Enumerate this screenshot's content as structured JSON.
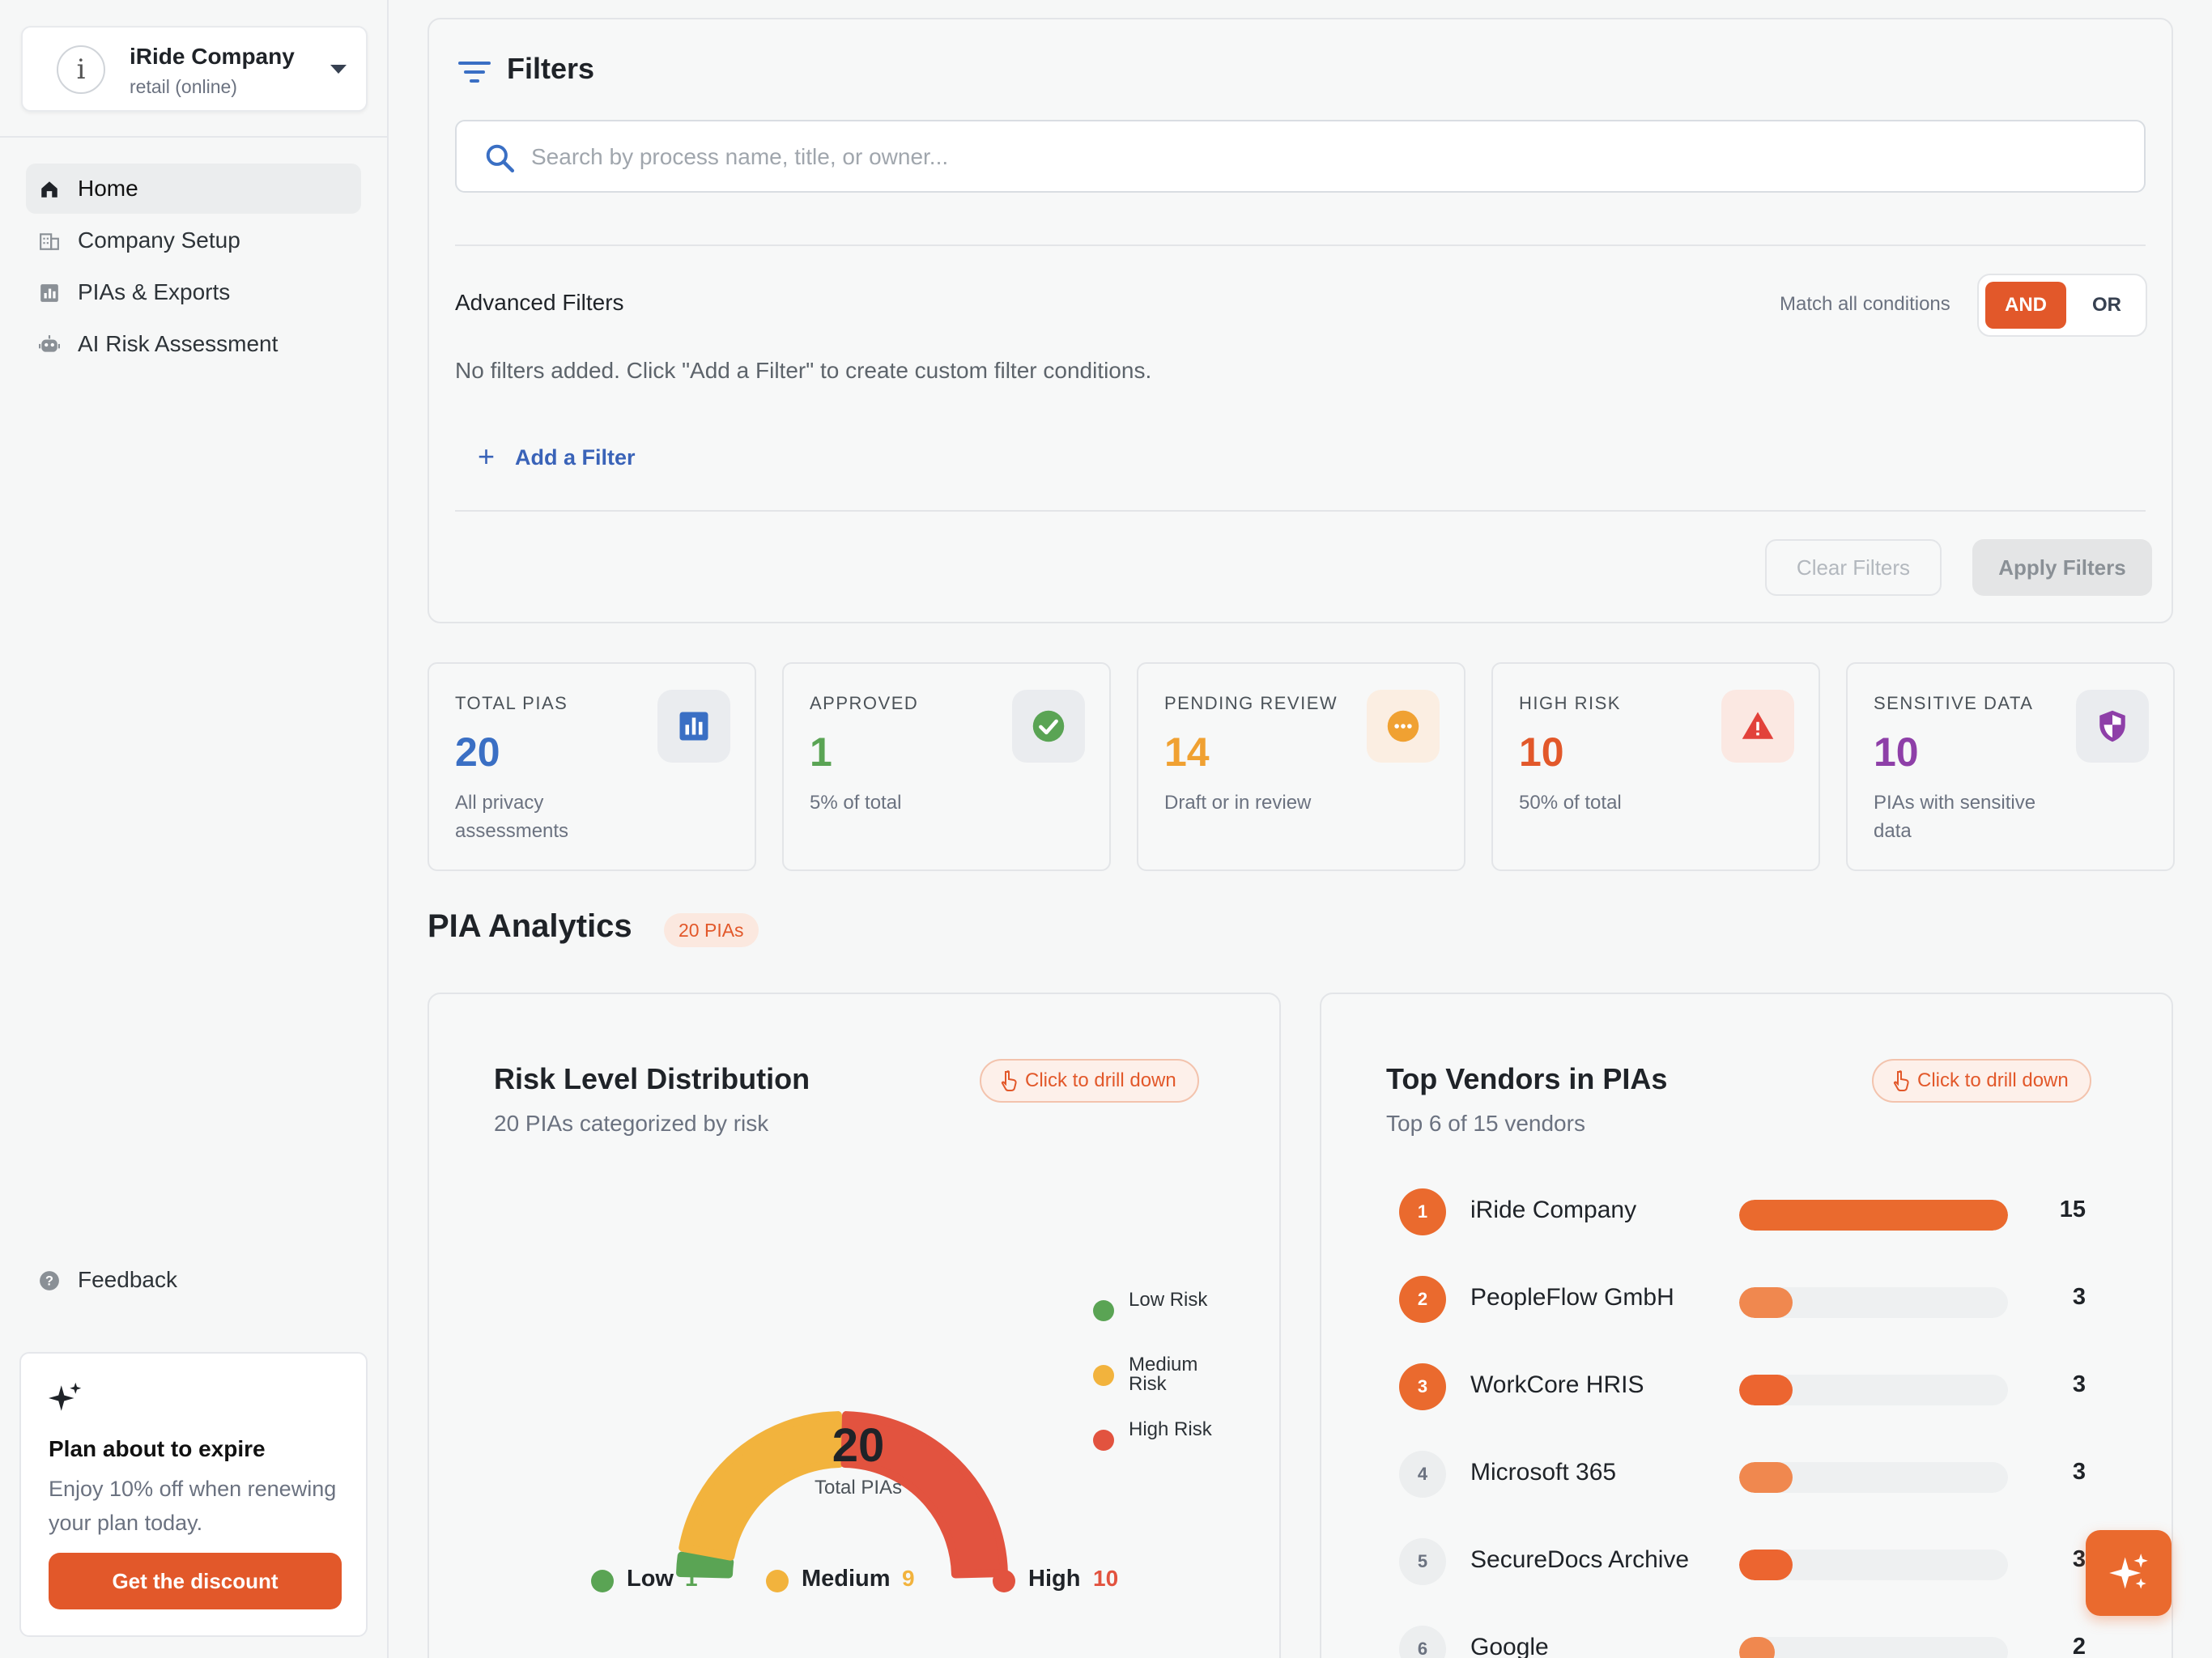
{
  "company": {
    "avatar_letter": "i",
    "name": "iRide Company",
    "type": "retail (online)"
  },
  "nav": {
    "items": [
      {
        "label": "Home",
        "icon": "home-icon"
      },
      {
        "label": "Company Setup",
        "icon": "building-icon"
      },
      {
        "label": "PIAs & Exports",
        "icon": "bar-chart-icon"
      },
      {
        "label": "AI Risk Assessment",
        "icon": "robot-icon"
      }
    ],
    "active": "Home",
    "feedback_label": "Feedback"
  },
  "plan": {
    "title": "Plan about to expire",
    "text": "Enjoy 10% off when renewing your plan today.",
    "button": "Get the discount"
  },
  "filters": {
    "title": "Filters",
    "search_placeholder": "Search by process name, title, or owner...",
    "advanced_title": "Advanced Filters",
    "match_label": "Match all conditions",
    "and_label": "AND",
    "or_label": "OR",
    "empty_text": "No filters added. Click \"Add a Filter\" to create custom filter conditions.",
    "add_label": "Add a Filter",
    "clear_label": "Clear Filters",
    "apply_label": "Apply Filters"
  },
  "stats": [
    {
      "label": "TOTAL PIAS",
      "value": "20",
      "sub": "All privacy assessments",
      "color": "#3a6fc4",
      "icon": "bar-chart-icon"
    },
    {
      "label": "APPROVED",
      "value": "1",
      "sub": "5% of total",
      "color": "#5aa454",
      "icon": "check-circle-icon"
    },
    {
      "label": "PENDING REVIEW",
      "value": "14",
      "sub": "Draft or in review",
      "color": "#f0a132",
      "icon": "more-circle-icon"
    },
    {
      "label": "HIGH RISK",
      "value": "10",
      "sub": "50% of total",
      "color": "#e2582a",
      "icon": "warning-icon"
    },
    {
      "label": "SENSITIVE DATA",
      "value": "10",
      "sub": "PIAs with sensitive data",
      "color": "#8e3fa8",
      "icon": "shield-icon"
    }
  ],
  "analytics": {
    "title": "PIA Analytics",
    "badge": "20 PIAs",
    "drill_label": "Click to drill down",
    "risk": {
      "title": "Risk Level Distribution",
      "subtitle": "20 PIAs categorized by risk",
      "total": "20",
      "total_caption": "Total PIAs",
      "side_legend": [
        "Low Risk",
        "Medium Risk",
        "High Risk"
      ],
      "levels": [
        {
          "name": "Low",
          "count": 1,
          "color": "#5aa454"
        },
        {
          "name": "Medium",
          "count": 9,
          "color": "#f2b33d"
        },
        {
          "name": "High",
          "count": 10,
          "color": "#e2533f"
        }
      ]
    },
    "vendors": {
      "title": "Top Vendors in PIAs",
      "subtitle": "Top 6 of 15 vendors",
      "max": 15,
      "items": [
        {
          "rank": "1",
          "name": "iRide Company",
          "count": 15,
          "count_label": "15"
        },
        {
          "rank": "2",
          "name": "PeopleFlow GmbH",
          "count": 3,
          "count_label": "3"
        },
        {
          "rank": "3",
          "name": "WorkCore HRIS",
          "count": 3,
          "count_label": "3"
        },
        {
          "rank": "4",
          "name": "Microsoft 365",
          "count": 3,
          "count_label": "3"
        },
        {
          "rank": "5",
          "name": "SecureDocs Archive",
          "count": 3,
          "count_label": "3"
        },
        {
          "rank": "6",
          "name": "Google",
          "count": 2,
          "count_label": "2"
        }
      ]
    }
  },
  "colors": {
    "accent": "#e2582a",
    "link": "#3a63b8"
  }
}
